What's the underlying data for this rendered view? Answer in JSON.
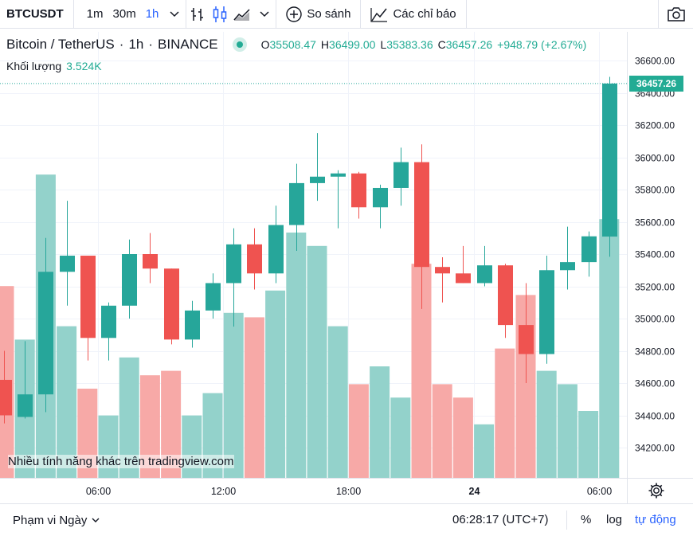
{
  "toolbar": {
    "symbol": "BTCUSDT",
    "intervals": [
      "1m",
      "30m",
      "1h"
    ],
    "active_interval": "1h",
    "compare_label": "So sánh",
    "indicators_label": "Các chỉ báo",
    "icons": [
      "chevron-down-icon",
      "bar-style-icon",
      "candle-style-icon",
      "area-style-icon",
      "plus-circle-icon",
      "indicators-icon",
      "camera-icon"
    ]
  },
  "legend": {
    "title": "Bitcoin / TetherUS",
    "sep1": "·",
    "interval": "1h",
    "sep2": "·",
    "exchange": "BINANCE",
    "open_label": "O",
    "open": "35508.47",
    "high_label": "H",
    "high": "36499.00",
    "low_label": "L",
    "low": "35383.36",
    "close_label": "C",
    "close": "36457.26",
    "change": "+948.79 (+2.67%)",
    "volume_label": "Khối lượng",
    "volume": "3.524K"
  },
  "watermark": "Nhiều tính năng khác trên tradingview.com",
  "last_price": "36457.26",
  "bottom": {
    "range_label": "Phạm vi Ngày",
    "time": "06:28:17 (UTC+7)",
    "percent_label": "%",
    "log_label": "log",
    "auto_label": "tự động"
  },
  "colors": {
    "up": "#26a69a",
    "down": "#ef5350",
    "up_volume": "#93d2cb",
    "down_volume": "#f7a9a7",
    "accent": "#2962ff"
  },
  "chart_data": {
    "type": "candlestick",
    "symbol": "BTCUSDT",
    "interval": "1h",
    "ylim": [
      34000,
      36700
    ],
    "y_ticks": [
      34200,
      34400,
      34600,
      34800,
      35000,
      35200,
      35400,
      35600,
      35800,
      36000,
      36200,
      36400,
      36600
    ],
    "y_tick_labels": [
      "34200.00",
      "34400.00",
      "34600.00",
      "34800.00",
      "35000.00",
      "35200.00",
      "35400.00",
      "35600.00",
      "35800.00",
      "36000.00",
      "36200.00",
      "36400.00",
      "36600.00"
    ],
    "x_tick_labels": [
      {
        "label": "06:00",
        "index": 4.5
      },
      {
        "label": "12:00",
        "index": 10.5
      },
      {
        "label": "18:00",
        "index": 16.5
      },
      {
        "label": "24",
        "index": 22.5
      },
      {
        "label": "06:00",
        "index": 28.5
      }
    ],
    "grid": true,
    "candles": [
      {
        "o": 34620,
        "h": 34800,
        "l": 34350,
        "c": 34400
      },
      {
        "o": 34390,
        "h": 34860,
        "l": 34380,
        "c": 34530
      },
      {
        "o": 34530,
        "h": 35500,
        "l": 34420,
        "c": 35290
      },
      {
        "o": 35290,
        "h": 35730,
        "l": 35080,
        "c": 35390
      },
      {
        "o": 35390,
        "h": 35390,
        "l": 34740,
        "c": 34880
      },
      {
        "o": 34880,
        "h": 35100,
        "l": 34740,
        "c": 35080
      },
      {
        "o": 35080,
        "h": 35490,
        "l": 35000,
        "c": 35400
      },
      {
        "o": 35400,
        "h": 35530,
        "l": 35220,
        "c": 35310
      },
      {
        "o": 35310,
        "h": 35310,
        "l": 34840,
        "c": 34870
      },
      {
        "o": 34870,
        "h": 35110,
        "l": 34820,
        "c": 35050
      },
      {
        "o": 35050,
        "h": 35280,
        "l": 35000,
        "c": 35220
      },
      {
        "o": 35220,
        "h": 35560,
        "l": 34950,
        "c": 35460
      },
      {
        "o": 35460,
        "h": 35560,
        "l": 35180,
        "c": 35280
      },
      {
        "o": 35280,
        "h": 35700,
        "l": 35220,
        "c": 35580
      },
      {
        "o": 35580,
        "h": 35960,
        "l": 35420,
        "c": 35840
      },
      {
        "o": 35840,
        "h": 36150,
        "l": 35730,
        "c": 35880
      },
      {
        "o": 35880,
        "h": 35920,
        "l": 35560,
        "c": 35900
      },
      {
        "o": 35900,
        "h": 35910,
        "l": 35620,
        "c": 35690
      },
      {
        "o": 35690,
        "h": 35830,
        "l": 35560,
        "c": 35810
      },
      {
        "o": 35810,
        "h": 36060,
        "l": 35700,
        "c": 35970
      },
      {
        "o": 35970,
        "h": 36080,
        "l": 35060,
        "c": 35320
      },
      {
        "o": 35320,
        "h": 35380,
        "l": 35100,
        "c": 35280
      },
      {
        "o": 35280,
        "h": 35450,
        "l": 35220,
        "c": 35220
      },
      {
        "o": 35220,
        "h": 35450,
        "l": 35200,
        "c": 35330
      },
      {
        "o": 35330,
        "h": 35340,
        "l": 34880,
        "c": 34960
      },
      {
        "o": 34960,
        "h": 35220,
        "l": 34600,
        "c": 34780
      },
      {
        "o": 34780,
        "h": 35390,
        "l": 34720,
        "c": 35300
      },
      {
        "o": 35300,
        "h": 35570,
        "l": 35180,
        "c": 35350
      },
      {
        "o": 35350,
        "h": 35540,
        "l": 35260,
        "c": 35510
      },
      {
        "o": 35508.47,
        "h": 36499.0,
        "l": 35383.36,
        "c": 36457.26
      }
    ],
    "volume": [
      0.43,
      0.31,
      0.68,
      0.34,
      0.2,
      0.14,
      0.27,
      0.23,
      0.24,
      0.14,
      0.19,
      0.37,
      0.36,
      0.42,
      0.55,
      0.52,
      0.34,
      0.21,
      0.25,
      0.18,
      0.48,
      0.21,
      0.18,
      0.12,
      0.29,
      0.41,
      0.24,
      0.21,
      0.15,
      0.58
    ],
    "last_price": 36457.26
  }
}
